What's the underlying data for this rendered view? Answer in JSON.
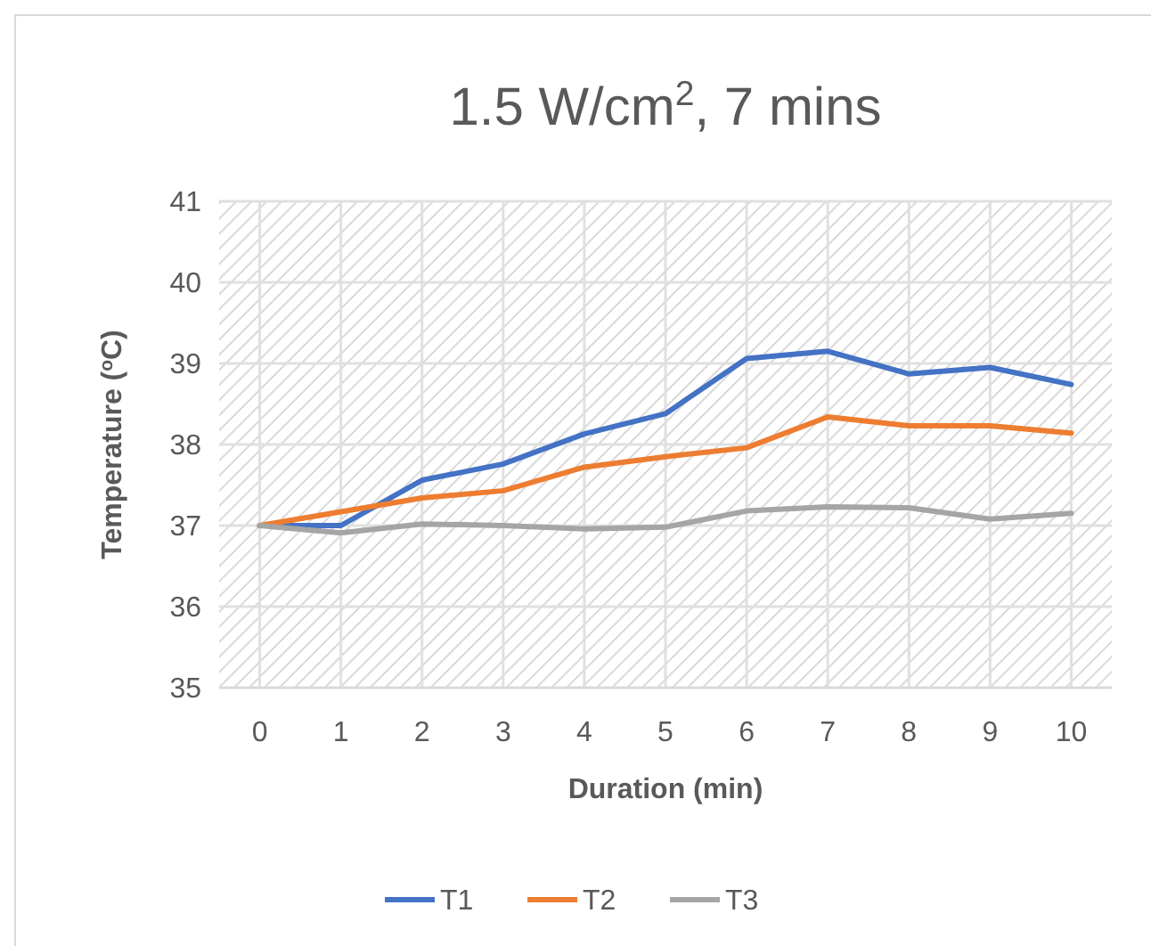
{
  "chart_data": {
    "type": "line",
    "title": "1.5 W/cm$^{2}$, 7 mins",
    "xlabel": "Duration (min)",
    "ylabel": "Temperature ($^{o}$C)",
    "x": [
      0,
      1,
      2,
      3,
      4,
      5,
      6,
      7,
      8,
      9,
      10
    ],
    "xlim": [
      -0.5,
      10.5
    ],
    "xticks": [
      0,
      1,
      2,
      3,
      4,
      5,
      6,
      7,
      8,
      9,
      10
    ],
    "ylim": [
      35,
      41
    ],
    "yticks": [
      35,
      36,
      37,
      38,
      39,
      40,
      41
    ],
    "grid": true,
    "legend": "bottom",
    "marker": "none",
    "line_style": "solid",
    "series": [
      {
        "name": "T1",
        "color": "#4472c4",
        "values": [
          37,
          37.0,
          37.56,
          37.76,
          38.13,
          38.38,
          39.06,
          39.15,
          38.87,
          38.95,
          38.74
        ]
      },
      {
        "name": "T2",
        "color": "#ed7d31",
        "values": [
          37,
          37.17,
          37.34,
          37.43,
          37.72,
          37.85,
          37.96,
          38.34,
          38.23,
          38.23,
          38.14
        ]
      },
      {
        "name": "T3",
        "color": "#a5a5a5",
        "values": [
          37,
          36.91,
          37.02,
          37.0,
          36.96,
          36.98,
          37.18,
          37.23,
          37.22,
          37.08,
          37.15
        ]
      }
    ]
  }
}
